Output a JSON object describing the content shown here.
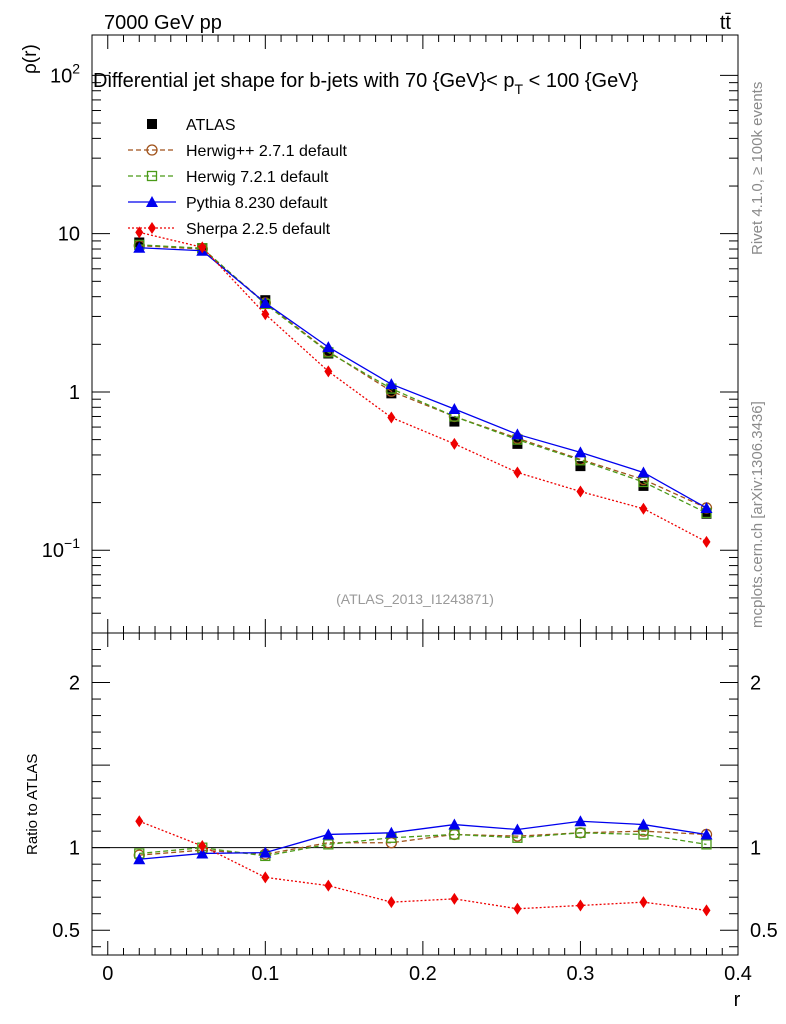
{
  "header": {
    "energy_label": "7000 GeV pp",
    "process_label": "tt̄",
    "rivet_label": "Rivet 4.1.0, ≥ 100k events",
    "mcplots_label": "mcplots.cern.ch [arXiv:1306.3436]",
    "analysis_id": "(ATLAS_2013_I1243871)"
  },
  "chart_data": [
    {
      "type": "line",
      "panel": "main",
      "title_prefix": "Differential jet shape for b-jets with 70 {GeV}< p",
      "title_sub": "T",
      "title_suffix": " < 100 {GeV}",
      "ylabel": "ρ(r)",
      "yscale": "log",
      "ylim": [
        0.03,
        180
      ],
      "xlim": [
        -0.01,
        0.4
      ],
      "y_tick_labels": [
        {
          "value": 100,
          "base": "10",
          "exp": "2"
        },
        {
          "value": 10,
          "base": "10",
          "exp": ""
        },
        {
          "value": 1,
          "base": "1",
          "exp": ""
        },
        {
          "value": 0.1,
          "base": "10",
          "exp": "−1"
        }
      ],
      "x": [
        0.02,
        0.06,
        0.1,
        0.14,
        0.18,
        0.22,
        0.26,
        0.3,
        0.34,
        0.38
      ],
      "series": [
        {
          "name": "ATLAS",
          "color": "#000000",
          "marker": "filled-square",
          "line": "none",
          "values": [
            8.8,
            8.1,
            3.8,
            1.75,
            0.98,
            0.65,
            0.47,
            0.34,
            0.255,
            0.17
          ]
        },
        {
          "name": "Herwig++ 2.7.1 default",
          "color": "#a0521a",
          "marker": "open-circle",
          "line": "dashed",
          "values": [
            8.4,
            8.0,
            3.65,
            1.8,
            1.01,
            0.7,
            0.51,
            0.375,
            0.28,
            0.185
          ]
        },
        {
          "name": "Herwig 7.2.1 default",
          "color": "#4a9a18",
          "marker": "open-square",
          "line": "dashed",
          "values": [
            8.5,
            8.1,
            3.6,
            1.78,
            1.05,
            0.7,
            0.5,
            0.37,
            0.27,
            0.172
          ]
        },
        {
          "name": "Pythia 8.230 default",
          "color": "#0000ee",
          "marker": "filled-triangle",
          "line": "solid",
          "values": [
            8.15,
            7.8,
            3.65,
            1.92,
            1.12,
            0.78,
            0.54,
            0.415,
            0.31,
            0.185
          ]
        },
        {
          "name": "Sherpa 2.2.5 default",
          "color": "#ee0000",
          "marker": "filled-diamond",
          "line": "dotted",
          "values": [
            10.2,
            8.2,
            3.1,
            1.35,
            0.69,
            0.47,
            0.31,
            0.235,
            0.183,
            0.113
          ]
        }
      ]
    },
    {
      "type": "line",
      "panel": "ratio",
      "ylabel": "Ratio to ATLAS",
      "xlabel": "r",
      "ylim": [
        0.35,
        2.3
      ],
      "xlim": [
        -0.01,
        0.4
      ],
      "y_tick_labels": [
        {
          "value": 2,
          "label": "2"
        },
        {
          "value": 1,
          "label": "1"
        },
        {
          "value": 0.5,
          "label": "0.5"
        }
      ],
      "x_tick_labels": [
        {
          "value": 0,
          "label": "0"
        },
        {
          "value": 0.1,
          "label": "0.1"
        },
        {
          "value": 0.2,
          "label": "0.2"
        },
        {
          "value": 0.3,
          "label": "0.3"
        },
        {
          "value": 0.4,
          "label": "0.4"
        }
      ],
      "reference_line": 1,
      "x": [
        0.02,
        0.06,
        0.1,
        0.14,
        0.18,
        0.22,
        0.26,
        0.3,
        0.34,
        0.38
      ],
      "series": [
        {
          "name": "Herwig++ 2.7.1 default",
          "values": [
            0.955,
            0.985,
            0.96,
            1.03,
            1.03,
            1.08,
            1.07,
            1.09,
            1.1,
            1.08
          ]
        },
        {
          "name": "Herwig 7.2.1 default",
          "values": [
            0.965,
            1.0,
            0.95,
            1.02,
            1.06,
            1.08,
            1.06,
            1.09,
            1.08,
            1.02
          ]
        },
        {
          "name": "Pythia 8.230 default",
          "values": [
            0.93,
            0.965,
            0.97,
            1.08,
            1.09,
            1.14,
            1.11,
            1.16,
            1.14,
            1.08
          ]
        },
        {
          "name": "Sherpa 2.2.5 default",
          "values": [
            1.16,
            1.01,
            0.82,
            0.77,
            0.67,
            0.69,
            0.63,
            0.65,
            0.67,
            0.62
          ]
        }
      ]
    }
  ]
}
